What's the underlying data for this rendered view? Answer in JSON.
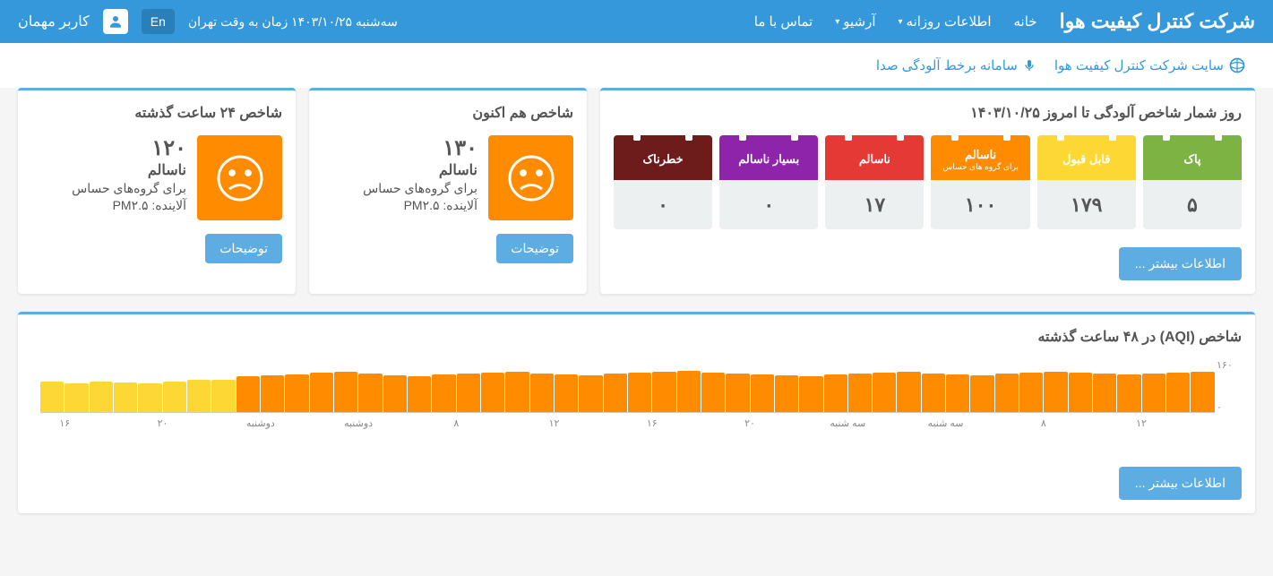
{
  "header": {
    "brand": "شرکت کنترل کیفیت هوا",
    "nav": [
      "خانه",
      "اطلاعات روزانه",
      "آرشیو",
      "تماس با ما"
    ],
    "nav_dropdown": [
      false,
      true,
      true,
      false
    ],
    "time": "سه‌شنبه ۱۴۰۳/۱۰/۲۵   زمان به وقت تهران",
    "lang": "En",
    "user": "کاربر مهمان"
  },
  "sublinks": {
    "a": "سایت شرکت کنترل کیفیت هوا",
    "b": "سامانه برخط آلودگی صدا"
  },
  "card_24h": {
    "title": "شاخص ۲۴ ساعت گذشته",
    "value": "۱۲۰",
    "status": "ناسالم",
    "group": "برای گروه‌های حساس",
    "pollutant": "آلاینده: PM۲.۵",
    "face_color": "#ff8c00",
    "btn": "توضیحات"
  },
  "card_now": {
    "title": "شاخص هم اکنون",
    "value": "۱۳۰",
    "status": "ناسالم",
    "group": "برای گروه‌های حساس",
    "pollutant": "آلاینده: PM۲.۵",
    "face_color": "#ff8c00",
    "btn": "توضیحات"
  },
  "counter": {
    "title": "روز شمار شاخص آلودگی تا امروز ۱۴۰۳/۱۰/۲۵",
    "items": [
      {
        "label": "پاک",
        "sub": "",
        "color": "#7cb342",
        "value": "۵"
      },
      {
        "label": "قابل قبول",
        "sub": "",
        "color": "#fdd835",
        "value": "۱۷۹"
      },
      {
        "label": "ناسالم",
        "sub": "برای گروه های حساس",
        "color": "#ff8c00",
        "value": "۱۰۰"
      },
      {
        "label": "ناسالم",
        "sub": "",
        "color": "#e53935",
        "value": "۱۷"
      },
      {
        "label": "بسیار ناسالم",
        "sub": "",
        "color": "#8e24aa",
        "value": "۰"
      },
      {
        "label": "خطرناک",
        "sub": "",
        "color": "#6d1b1b",
        "value": "۰"
      }
    ],
    "btn": "اطلاعات بیشتر ..."
  },
  "chart": {
    "title": "شاخص (AQI) در ۴۸ ساعت گذشته",
    "type": "bar",
    "ymax": 160,
    "ylabels": [
      "۱۶۰",
      "۰"
    ],
    "grid_color": "#ccc",
    "bg": "#ffffff",
    "yellow": "#fdd835",
    "orange": "#ff8c00",
    "values": [
      90,
      85,
      92,
      88,
      85,
      92,
      95,
      95,
      108,
      110,
      112,
      118,
      120,
      115,
      110,
      108,
      112,
      115,
      118,
      120,
      115,
      112,
      110,
      115,
      118,
      120,
      122,
      118,
      115,
      112,
      110,
      108,
      112,
      115,
      118,
      120,
      115,
      112,
      110,
      115,
      118,
      120,
      118,
      115,
      112,
      115,
      118,
      120
    ],
    "colors_idx": [
      0,
      0,
      0,
      0,
      0,
      0,
      0,
      0,
      1,
      1,
      1,
      1,
      1,
      1,
      1,
      1,
      1,
      1,
      1,
      1,
      1,
      1,
      1,
      1,
      1,
      1,
      1,
      1,
      1,
      1,
      1,
      1,
      1,
      1,
      1,
      1,
      1,
      1,
      1,
      1,
      1,
      1,
      1,
      1,
      1,
      1,
      1,
      1
    ],
    "xlabels": [
      "۱۶",
      "",
      "۲۰",
      "",
      "دوشنبه",
      "",
      "دوشنبه",
      "",
      "۸",
      "",
      "۱۲",
      "",
      "۱۶",
      "",
      "۲۰",
      "",
      "سه شنبه",
      "",
      "سه شنبه",
      "",
      "۸",
      "",
      "۱۲",
      ""
    ],
    "btn": "اطلاعات بیشتر ..."
  }
}
